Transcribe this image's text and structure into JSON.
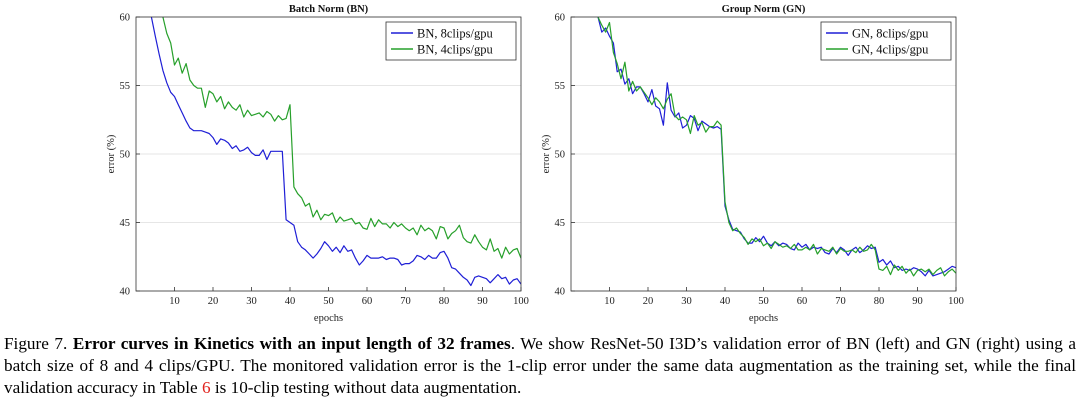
{
  "chart_data": [
    {
      "type": "line",
      "title": "Batch Norm (BN)",
      "xlabel": "epochs",
      "ylabel": "error (%)",
      "xlim": [
        0,
        100
      ],
      "ylim": [
        40,
        60
      ],
      "xticks": [
        "10",
        "20",
        "30",
        "40",
        "50",
        "60",
        "70",
        "80",
        "90",
        "100"
      ],
      "yticks": [
        "40",
        "45",
        "50",
        "55",
        "60"
      ],
      "grid": "horizontal",
      "legend_position": "top-right",
      "series": [
        {
          "name": "BN, 8clips/gpu",
          "color": "#1f1fd6",
          "x": [
            4,
            5,
            6,
            7,
            8,
            9,
            10,
            11,
            12,
            13,
            14,
            15,
            16,
            17,
            18,
            19,
            20,
            21,
            22,
            23,
            24,
            25,
            26,
            27,
            28,
            29,
            30,
            31,
            32,
            33,
            34,
            35,
            36,
            37,
            38,
            39,
            40,
            41,
            42,
            43,
            44,
            45,
            46,
            47,
            48,
            49,
            50,
            51,
            52,
            53,
            54,
            55,
            56,
            57,
            58,
            59,
            60,
            61,
            62,
            63,
            64,
            65,
            66,
            67,
            68,
            69,
            70,
            71,
            72,
            73,
            74,
            75,
            76,
            77,
            78,
            79,
            80,
            81,
            82,
            83,
            84,
            85,
            86,
            87,
            88,
            89,
            90,
            91,
            92,
            93,
            94,
            95,
            96,
            97,
            98,
            99,
            100
          ],
          "y": [
            60.0,
            58.6,
            57.3,
            56.1,
            55.2,
            54.5,
            54.2,
            53.6,
            53.0,
            52.4,
            51.9,
            51.7,
            51.7,
            51.7,
            51.6,
            51.5,
            51.2,
            50.7,
            51.1,
            51.0,
            50.8,
            50.4,
            50.6,
            50.2,
            50.3,
            50.5,
            50.1,
            49.9,
            49.9,
            50.3,
            49.6,
            50.2,
            50.2,
            50.2,
            50.2,
            45.2,
            45.0,
            44.8,
            43.6,
            43.2,
            43.0,
            42.7,
            42.4,
            42.7,
            43.1,
            43.6,
            43.3,
            42.9,
            43.2,
            42.8,
            43.3,
            42.9,
            43.0,
            42.4,
            41.9,
            42.2,
            42.6,
            42.4,
            42.4,
            42.4,
            42.5,
            42.3,
            42.4,
            42.4,
            42.3,
            41.9,
            42.0,
            42.0,
            42.2,
            42.6,
            42.5,
            42.3,
            42.6,
            42.4,
            42.4,
            42.8,
            42.9,
            42.4,
            41.7,
            41.6,
            41.3,
            41.0,
            40.8,
            40.4,
            41.0,
            41.1,
            41.0,
            40.9,
            40.6,
            40.9,
            41.2,
            40.9,
            41.0,
            40.5,
            40.8,
            40.9,
            40.5
          ]
        },
        {
          "name": "BN, 4clips/gpu",
          "color": "#27a02b",
          "x": [
            7,
            8,
            9,
            10,
            11,
            12,
            13,
            14,
            15,
            16,
            17,
            18,
            19,
            20,
            21,
            22,
            23,
            24,
            25,
            26,
            27,
            28,
            29,
            30,
            31,
            32,
            33,
            34,
            35,
            36,
            37,
            38,
            39,
            40,
            41,
            42,
            43,
            44,
            45,
            46,
            47,
            48,
            49,
            50,
            51,
            52,
            53,
            54,
            55,
            56,
            57,
            58,
            59,
            60,
            61,
            62,
            63,
            64,
            65,
            66,
            67,
            68,
            69,
            70,
            71,
            72,
            73,
            74,
            75,
            76,
            77,
            78,
            79,
            80,
            81,
            82,
            83,
            84,
            85,
            86,
            87,
            88,
            89,
            90,
            91,
            92,
            93,
            94,
            95,
            96,
            97,
            98,
            99,
            100
          ],
          "y": [
            60.0,
            58.8,
            58.1,
            56.5,
            57.0,
            55.9,
            56.6,
            55.4,
            55.0,
            54.8,
            54.8,
            53.4,
            54.6,
            54.4,
            53.8,
            54.2,
            53.3,
            53.8,
            53.4,
            53.2,
            53.6,
            52.7,
            53.2,
            52.8,
            52.9,
            53.0,
            52.7,
            53.1,
            52.9,
            52.4,
            52.8,
            52.5,
            52.6,
            53.6,
            47.6,
            47.1,
            46.8,
            46.2,
            46.4,
            45.4,
            45.9,
            45.2,
            45.6,
            45.5,
            45.7,
            45.0,
            45.4,
            45.1,
            45.2,
            45.3,
            44.9,
            45.0,
            44.6,
            44.5,
            45.3,
            44.7,
            45.2,
            44.9,
            44.9,
            44.6,
            45.0,
            44.7,
            44.9,
            44.6,
            44.4,
            44.6,
            44.1,
            44.8,
            44.4,
            44.6,
            44.4,
            43.8,
            44.7,
            44.6,
            43.8,
            44.2,
            44.4,
            44.8,
            43.9,
            43.6,
            43.5,
            44.1,
            43.6,
            43.2,
            43.0,
            43.8,
            42.9,
            43.1,
            42.4,
            43.2,
            42.7,
            43.0,
            43.1,
            42.4
          ]
        }
      ]
    },
    {
      "type": "line",
      "title": "Group Norm (GN)",
      "xlabel": "epochs",
      "ylabel": "error (%)",
      "xlim": [
        0,
        100
      ],
      "ylim": [
        40,
        60
      ],
      "xticks": [
        "10",
        "20",
        "30",
        "40",
        "50",
        "60",
        "70",
        "80",
        "90",
        "100"
      ],
      "yticks": [
        "40",
        "45",
        "50",
        "55",
        "60"
      ],
      "grid": "horizontal",
      "legend_position": "top-right",
      "series": [
        {
          "name": "GN, 8clips/gpu",
          "color": "#1f1fd6",
          "x": [
            7,
            8,
            9,
            10,
            11,
            12,
            13,
            14,
            15,
            16,
            17,
            18,
            19,
            20,
            21,
            22,
            23,
            24,
            25,
            26,
            27,
            28,
            29,
            30,
            31,
            32,
            33,
            34,
            35,
            36,
            37,
            38,
            39,
            40,
            41,
            42,
            43,
            44,
            45,
            46,
            47,
            48,
            49,
            50,
            51,
            52,
            53,
            54,
            55,
            56,
            57,
            58,
            59,
            60,
            61,
            62,
            63,
            64,
            65,
            66,
            67,
            68,
            69,
            70,
            71,
            72,
            73,
            74,
            75,
            76,
            77,
            78,
            79,
            80,
            81,
            82,
            83,
            84,
            85,
            86,
            87,
            88,
            89,
            90,
            91,
            92,
            93,
            94,
            95,
            96,
            97,
            98,
            99,
            100
          ],
          "y": [
            60.0,
            58.9,
            59.2,
            58.6,
            58.1,
            56.0,
            56.2,
            55.1,
            55.5,
            54.4,
            54.9,
            54.9,
            54.4,
            53.8,
            54.7,
            53.5,
            53.3,
            52.1,
            55.2,
            53.2,
            52.7,
            53.0,
            51.9,
            52.1,
            52.8,
            52.6,
            51.7,
            52.4,
            52.2,
            52.0,
            51.9,
            52.0,
            51.8,
            46.2,
            45.2,
            44.5,
            44.4,
            44.3,
            43.8,
            43.5,
            43.5,
            43.9,
            43.6,
            44.0,
            43.5,
            43.3,
            43.6,
            43.3,
            43.5,
            43.4,
            43.1,
            43.0,
            43.5,
            43.2,
            43.4,
            43.0,
            43.2,
            43.1,
            43.2,
            42.8,
            42.7,
            43.1,
            42.8,
            43.2,
            43.0,
            42.6,
            43.0,
            43.2,
            42.8,
            43.0,
            43.3,
            43.1,
            43.2,
            42.1,
            42.3,
            41.9,
            42.2,
            41.7,
            41.8,
            41.5,
            41.6,
            41.5,
            41.7,
            41.6,
            41.4,
            41.1,
            41.5,
            41.1,
            41.2,
            41.3,
            41.4,
            41.6,
            41.8,
            41.7
          ]
        },
        {
          "name": "GN, 4clips/gpu",
          "color": "#27a02b",
          "x": [
            7,
            8,
            9,
            10,
            11,
            12,
            13,
            14,
            15,
            16,
            17,
            18,
            19,
            20,
            21,
            22,
            23,
            24,
            25,
            26,
            27,
            28,
            29,
            30,
            31,
            32,
            33,
            34,
            35,
            36,
            37,
            38,
            39,
            40,
            41,
            42,
            43,
            44,
            45,
            46,
            47,
            48,
            49,
            50,
            51,
            52,
            53,
            54,
            55,
            56,
            57,
            58,
            59,
            60,
            61,
            62,
            63,
            64,
            65,
            66,
            67,
            68,
            69,
            70,
            71,
            72,
            73,
            74,
            75,
            76,
            77,
            78,
            79,
            80,
            81,
            82,
            83,
            84,
            85,
            86,
            87,
            88,
            89,
            90,
            91,
            92,
            93,
            94,
            95,
            96,
            97,
            98,
            99,
            100
          ],
          "y": [
            60.0,
            59.4,
            58.9,
            59.6,
            57.4,
            56.6,
            55.5,
            56.7,
            54.6,
            55.3,
            54.6,
            54.9,
            54.5,
            54.1,
            53.6,
            54.1,
            53.8,
            53.3,
            54.0,
            54.4,
            52.8,
            52.5,
            52.7,
            52.5,
            51.5,
            52.8,
            52.1,
            52.3,
            51.6,
            52.0,
            52.0,
            52.4,
            52.1,
            46.5,
            45.0,
            44.4,
            44.6,
            44.2,
            43.9,
            43.4,
            43.8,
            43.6,
            43.8,
            43.3,
            43.5,
            43.1,
            43.6,
            43.4,
            43.2,
            43.3,
            43.1,
            43.4,
            43.0,
            43.0,
            43.2,
            43.0,
            43.4,
            42.7,
            43.1,
            43.0,
            42.9,
            43.2,
            42.7,
            43.1,
            42.9,
            42.9,
            43.0,
            42.8,
            43.2,
            42.9,
            43.0,
            43.4,
            43.0,
            41.6,
            41.5,
            41.8,
            41.2,
            41.9,
            41.5,
            41.8,
            41.3,
            41.6,
            41.1,
            41.5,
            41.6,
            41.4,
            41.6,
            41.2,
            41.5,
            41.7,
            41.1,
            41.4,
            41.6,
            41.3
          ]
        }
      ]
    }
  ],
  "caption": {
    "figure_label": "Figure 7.",
    "title": "Error curves in Kinetics with an input length of 32 frames",
    "text_before_ref": ". We show ResNet-50 I3D’s validation error of BN (left) and GN (right) using a batch size of 8 and 4 clips/GPU. The monitored validation error is the 1-clip error under the same data augmentation as the training set, while the final validation accuracy in Table ",
    "ref": "6",
    "text_after_ref": " is 10-clip testing without data augmentation.",
    "ref_color": "#e0211c"
  }
}
